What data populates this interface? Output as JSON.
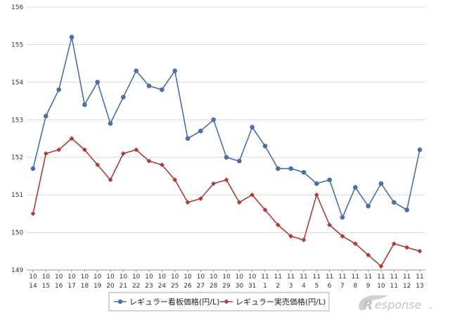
{
  "chart_data": {
    "type": "line",
    "categories": [
      [
        "10",
        "14"
      ],
      [
        "10",
        "15"
      ],
      [
        "10",
        "16"
      ],
      [
        "10",
        "17"
      ],
      [
        "10",
        "18"
      ],
      [
        "10",
        "19"
      ],
      [
        "10",
        "20"
      ],
      [
        "10",
        "21"
      ],
      [
        "10",
        "22"
      ],
      [
        "10",
        "23"
      ],
      [
        "10",
        "24"
      ],
      [
        "10",
        "25"
      ],
      [
        "10",
        "26"
      ],
      [
        "10",
        "27"
      ],
      [
        "10",
        "28"
      ],
      [
        "10",
        "29"
      ],
      [
        "10",
        "30"
      ],
      [
        "10",
        "31"
      ],
      [
        "11",
        "1"
      ],
      [
        "11",
        "2"
      ],
      [
        "11",
        "3"
      ],
      [
        "11",
        "4"
      ],
      [
        "11",
        "5"
      ],
      [
        "11",
        "6"
      ],
      [
        "11",
        "7"
      ],
      [
        "11",
        "8"
      ],
      [
        "11",
        "9"
      ],
      [
        "11",
        "10"
      ],
      [
        "11",
        "11"
      ],
      [
        "11",
        "12"
      ],
      [
        "11",
        "13"
      ]
    ],
    "series": [
      {
        "name": "レギュラー看板価格(円/L)",
        "color": "#4a6fa5",
        "marker": "circle",
        "values": [
          151.7,
          153.1,
          153.8,
          155.2,
          153.4,
          154.0,
          152.9,
          153.6,
          154.3,
          153.9,
          153.8,
          154.3,
          152.5,
          152.7,
          153.0,
          152.0,
          151.9,
          152.8,
          152.3,
          151.7,
          151.7,
          151.6,
          151.3,
          151.4,
          150.4,
          151.2,
          150.7,
          151.3,
          150.8,
          150.6,
          152.2
        ]
      },
      {
        "name": "レギュラー実売価格(円/L)",
        "color": "#b03a3a",
        "marker": "diamond",
        "values": [
          150.5,
          152.1,
          152.2,
          152.5,
          152.2,
          151.8,
          151.4,
          152.1,
          152.2,
          151.9,
          151.8,
          151.4,
          150.8,
          150.9,
          151.3,
          151.4,
          150.8,
          151.0,
          150.6,
          150.2,
          149.9,
          149.8,
          151.0,
          150.2,
          149.9,
          149.7,
          149.4,
          149.1,
          149.7,
          149.6,
          149.5
        ]
      }
    ],
    "yticks": [
      "149",
      "150",
      "151",
      "152",
      "153",
      "154",
      "155",
      "156"
    ],
    "ylim": [
      149,
      156
    ],
    "grid": true,
    "legend": "bottom-center"
  },
  "watermark": {
    "text": "esponse",
    "suffix": ".",
    "icon": "r-swoosh-logo"
  }
}
